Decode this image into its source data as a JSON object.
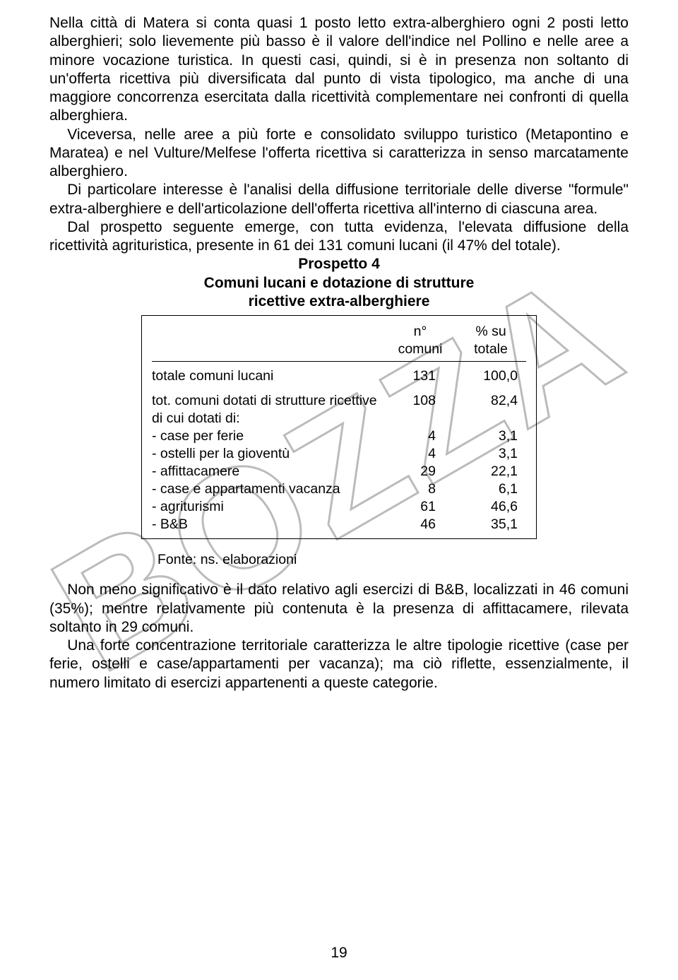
{
  "watermark": "BOZZA",
  "para1": "Nella città di Matera si conta quasi 1 posto letto extra-alberghiero ogni 2 posti letto alberghieri; solo lievemente più basso è il valore dell'indice nel Pollino e nelle aree a minore vocazione turistica. In questi casi, quindi, si è in presenza non soltanto di un'offerta ricettiva più diversificata dal punto di vista tipologico, ma anche di una maggiore concorrenza esercitata dalla ricettività complementare nei confronti di quella alberghiera.",
  "para2": "Viceversa, nelle aree a più forte e consolidato sviluppo turistico (Metapontino e Maratea) e nel Vulture/Melfese l'offerta ricettiva si caratterizza in senso marcatamente alberghiero.",
  "para3": "Di particolare interesse è l'analisi della diffusione territoriale delle diverse \"formule\" extra-alberghiere e dell'articolazione dell'offerta ricettiva all'interno di ciascuna area.",
  "para4": "Dal prospetto seguente emerge, con tutta evidenza, l'elevata diffusione della ricettività agrituristica, presente in 61 dei 131 comuni lucani (il 47% del totale).",
  "table": {
    "title_line1": "Prospetto 4",
    "title_line2": "Comuni lucani e dotazione di strutture",
    "title_line3": "ricettive extra-alberghiere",
    "head_n_line1": "n°",
    "head_n_line2": "comuni",
    "head_p_line1": "% su",
    "head_p_line2": "totale",
    "row_total_label": "totale comuni lucani",
    "row_total_n": "131",
    "row_total_p": "100,0",
    "row_dot_label": "tot. comuni dotati di strutture ricettive",
    "row_dot_n": "108",
    "row_dot_p": "82,4",
    "sub_label": "di cui dotati di:",
    "rows": [
      {
        "label": "- case per ferie",
        "n": "4",
        "p": "3,1"
      },
      {
        "label": "- ostelli per la gioventù",
        "n": "4",
        "p": "3,1"
      },
      {
        "label": "- affittacamere",
        "n": "29",
        "p": "22,1"
      },
      {
        "label": "- case e appartamenti vacanza",
        "n": "8",
        "p": "6,1"
      },
      {
        "label": "- agriturismi",
        "n": "61",
        "p": "46,6"
      },
      {
        "label": "- B&B",
        "n": "46",
        "p": "35,1"
      }
    ],
    "source": "Fonte: ns. elaborazioni"
  },
  "para5": "Non meno significativo è il dato relativo agli esercizi di B&B, localizzati in 46 comuni (35%); mentre relativamente più contenuta è la presenza di affittacamere, rilevata soltanto in 29 comuni.",
  "para6": "Una forte concentrazione territoriale caratterizza le altre tipologie ricettive (case per ferie, ostelli e case/appartamenti per vacanza); ma ciò riflette, essenzialmente, il numero limitato di esercizi appartenenti a queste categorie.",
  "page_number": "19"
}
